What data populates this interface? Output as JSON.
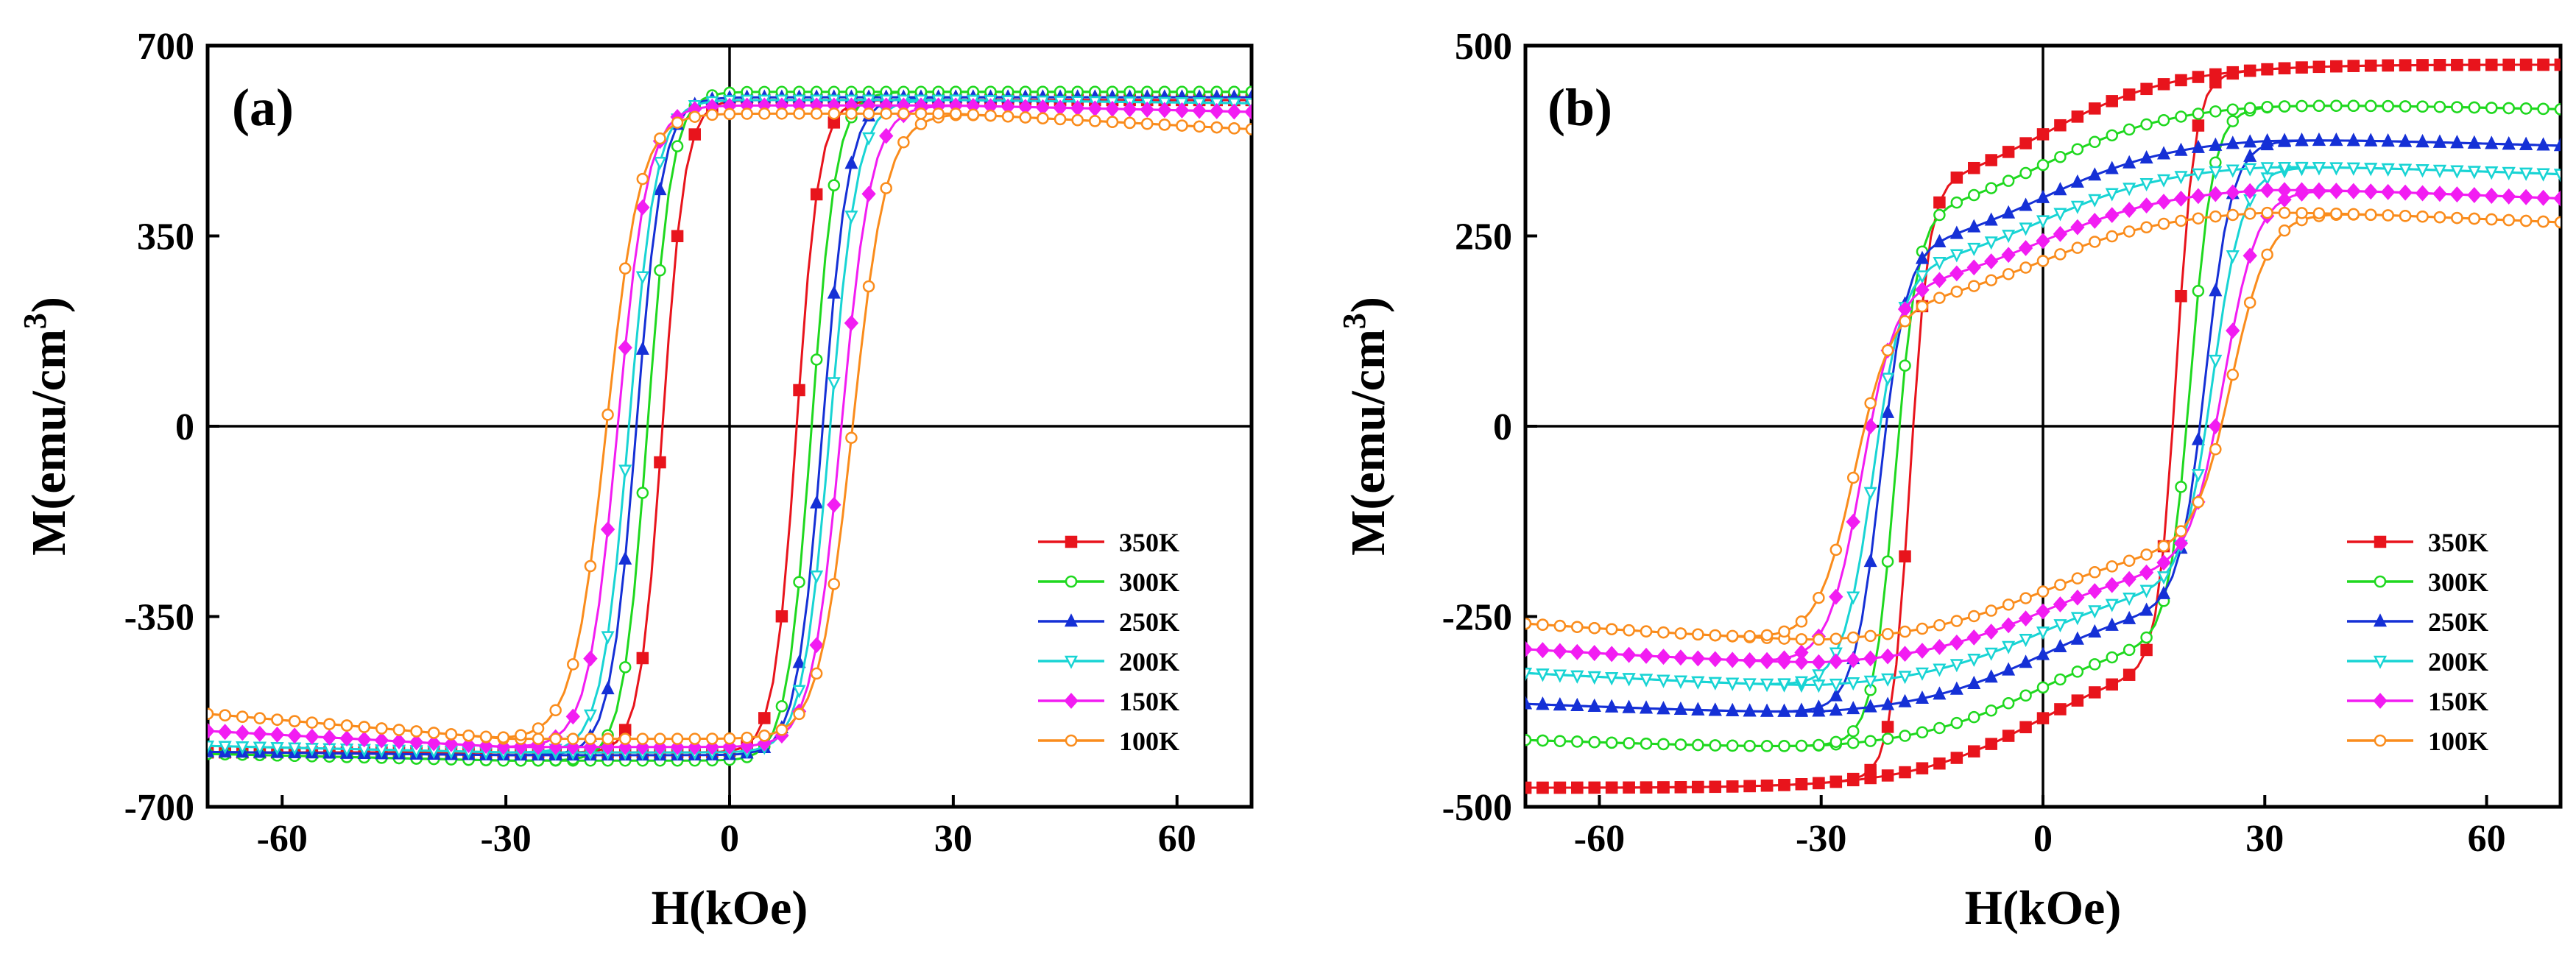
{
  "chart_data": [
    {
      "type": "line",
      "panel_label": "(a)",
      "xlabel": "H(kOe)",
      "ylabel_main": "M(emu/cm",
      "ylabel_sup": "3",
      "ylabel_close": ")",
      "xlim": [
        -70,
        70
      ],
      "ylim": [
        -700,
        700
      ],
      "xticks": [
        -60,
        -30,
        0,
        30,
        60
      ],
      "xtick_labels": [
        "-60",
        "-30",
        "0",
        "30",
        "60"
      ],
      "yticks": [
        -700,
        -350,
        0,
        350,
        700
      ],
      "ytick_labels": [
        "-700",
        "-350",
        "0",
        "350",
        "700"
      ],
      "legend_position": "bottom-right",
      "series": [
        {
          "name": "350K",
          "color": "#e8141c",
          "marker": "square",
          "Ms": 600,
          "Hc": 9.0,
          "w": 3.0,
          "k": 0.0,
          "dropHigh": 0.0,
          "dropLow": 0.0
        },
        {
          "name": "300K",
          "color": "#1fd81f",
          "marker": "circle-open",
          "Ms": 615,
          "Hc": 11.0,
          "w": 3.3,
          "k": 0.0,
          "dropHigh": 0.0,
          "dropLow": 0.02
        },
        {
          "name": "250K",
          "color": "#1530d6",
          "marker": "triangle-up",
          "Ms": 605,
          "Hc": 12.5,
          "w": 3.5,
          "k": 0.0,
          "dropHigh": 0.0,
          "dropLow": 0.01
        },
        {
          "name": "200K",
          "color": "#18d4d4",
          "marker": "triangle-down-open",
          "Ms": 600,
          "Hc": 13.5,
          "w": 3.7,
          "k": 0.0,
          "dropHigh": 0.01,
          "dropLow": 0.02
        },
        {
          "name": "150K",
          "color": "#f21cf2",
          "marker": "diamond",
          "Ms": 590,
          "Hc": 15.0,
          "w": 4.0,
          "k": 0.0,
          "dropHigh": 0.02,
          "dropLow": 0.05
        },
        {
          "name": "100K",
          "color": "#fa8c1c",
          "marker": "circle-open",
          "Ms": 575,
          "Hc": 16.5,
          "w": 4.5,
          "k": 0.0,
          "dropHigh": 0.05,
          "dropLow": 0.08
        }
      ]
    },
    {
      "type": "line",
      "panel_label": "(b)",
      "xlabel": "H(kOe)",
      "ylabel_main": "M(emu/cm",
      "ylabel_sup": "3",
      "ylabel_close": ")",
      "xlim": [
        -70,
        70
      ],
      "ylim": [
        -500,
        500
      ],
      "xticks": [
        -60,
        -30,
        0,
        30,
        60
      ],
      "xtick_labels": [
        "-60",
        "-30",
        "0",
        "30",
        "60"
      ],
      "yticks": [
        -500,
        -250,
        0,
        250,
        500
      ],
      "ytick_labels": [
        "-500",
        "-250",
        "0",
        "250",
        "500"
      ],
      "legend_position": "bottom-right",
      "series": [
        {
          "name": "350K",
          "color": "#e8141c",
          "marker": "square",
          "Ms": 475,
          "Hc": 18.0,
          "w": 2.5,
          "k": 0.55,
          "dropHigh": 0.0,
          "dropLow": 0.0
        },
        {
          "name": "300K",
          "color": "#1fd81f",
          "marker": "circle-open",
          "Ms": 425,
          "Hc": 20.0,
          "w": 3.0,
          "k": 0.55,
          "dropHigh": 0.02,
          "dropLow": 0.03
        },
        {
          "name": "250K",
          "color": "#1530d6",
          "marker": "triangle-up",
          "Ms": 380,
          "Hc": 22.0,
          "w": 3.5,
          "k": 0.6,
          "dropHigh": 0.03,
          "dropLow": 0.04
        },
        {
          "name": "200K",
          "color": "#18d4d4",
          "marker": "triangle-down-open",
          "Ms": 345,
          "Hc": 23.0,
          "w": 4.0,
          "k": 0.62,
          "dropHigh": 0.04,
          "dropLow": 0.06
        },
        {
          "name": "150K",
          "color": "#f21cf2",
          "marker": "diamond",
          "Ms": 315,
          "Hc": 24.5,
          "w": 4.5,
          "k": 0.65,
          "dropHigh": 0.05,
          "dropLow": 0.07
        },
        {
          "name": "100K",
          "color": "#fa8c1c",
          "marker": "circle-open",
          "Ms": 285,
          "Hc": 25.5,
          "w": 5.0,
          "k": 0.68,
          "dropHigh": 0.06,
          "dropLow": 0.09
        }
      ]
    }
  ]
}
